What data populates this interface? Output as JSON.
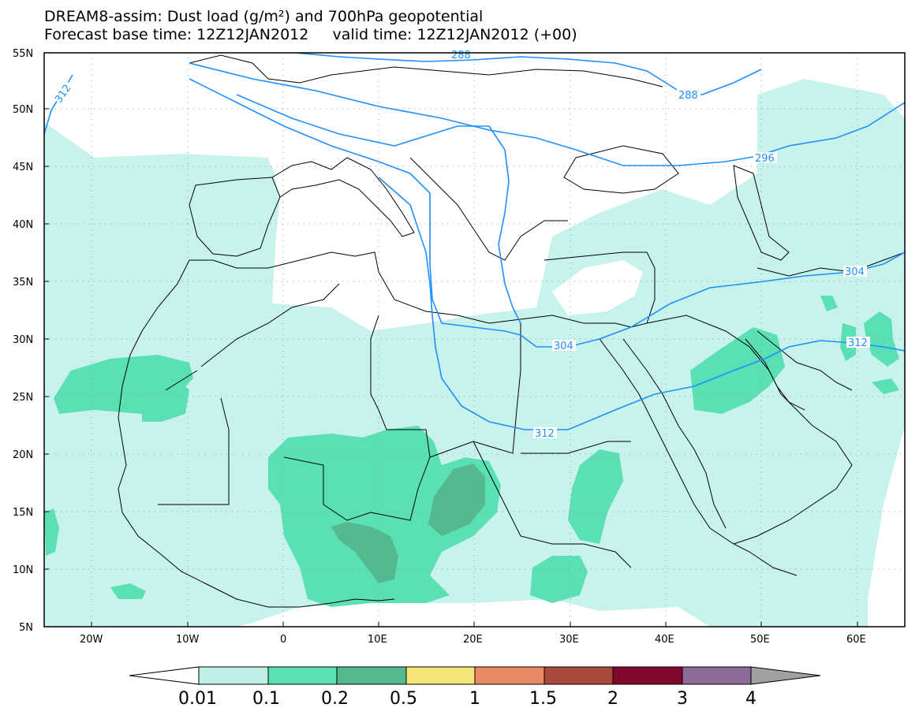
{
  "header": {
    "line1": "DREAM8-assim: Dust load (g/m²) and 700hPa geopotential",
    "line2": "Forecast base time: 12Z12JAN2012     valid time: 12Z12JAN2012 (+00)"
  },
  "axes": {
    "lat_labels": [
      "55N",
      "50N",
      "45N",
      "40N",
      "35N",
      "30N",
      "25N",
      "20N",
      "15N",
      "10N",
      "5N"
    ],
    "lon_labels": [
      "20W",
      "10W",
      "0",
      "10E",
      "20E",
      "30E",
      "40E",
      "50E",
      "60E"
    ]
  },
  "contours": {
    "color": "#1e90ff",
    "labels": [
      "312",
      "288",
      "288",
      "296",
      "304",
      "312",
      "304",
      "312"
    ]
  },
  "colorbar": {
    "labels": [
      "0.01",
      "0.1",
      "0.2",
      "0.5",
      "1",
      "1.5",
      "2",
      "3",
      "4"
    ],
    "colors": [
      "#ffffff",
      "#bff0e8",
      "#5ae0b4",
      "#55b990",
      "#f5e67a",
      "#e98a64",
      "#a84a3c",
      "#80082a",
      "#8c6b9a",
      "#a0a0a0"
    ]
  },
  "dust_colors": {
    "low": "#c8f2ec",
    "mid": "#5ae0b4",
    "high": "#55b990",
    "peak": "#5a9e80"
  }
}
